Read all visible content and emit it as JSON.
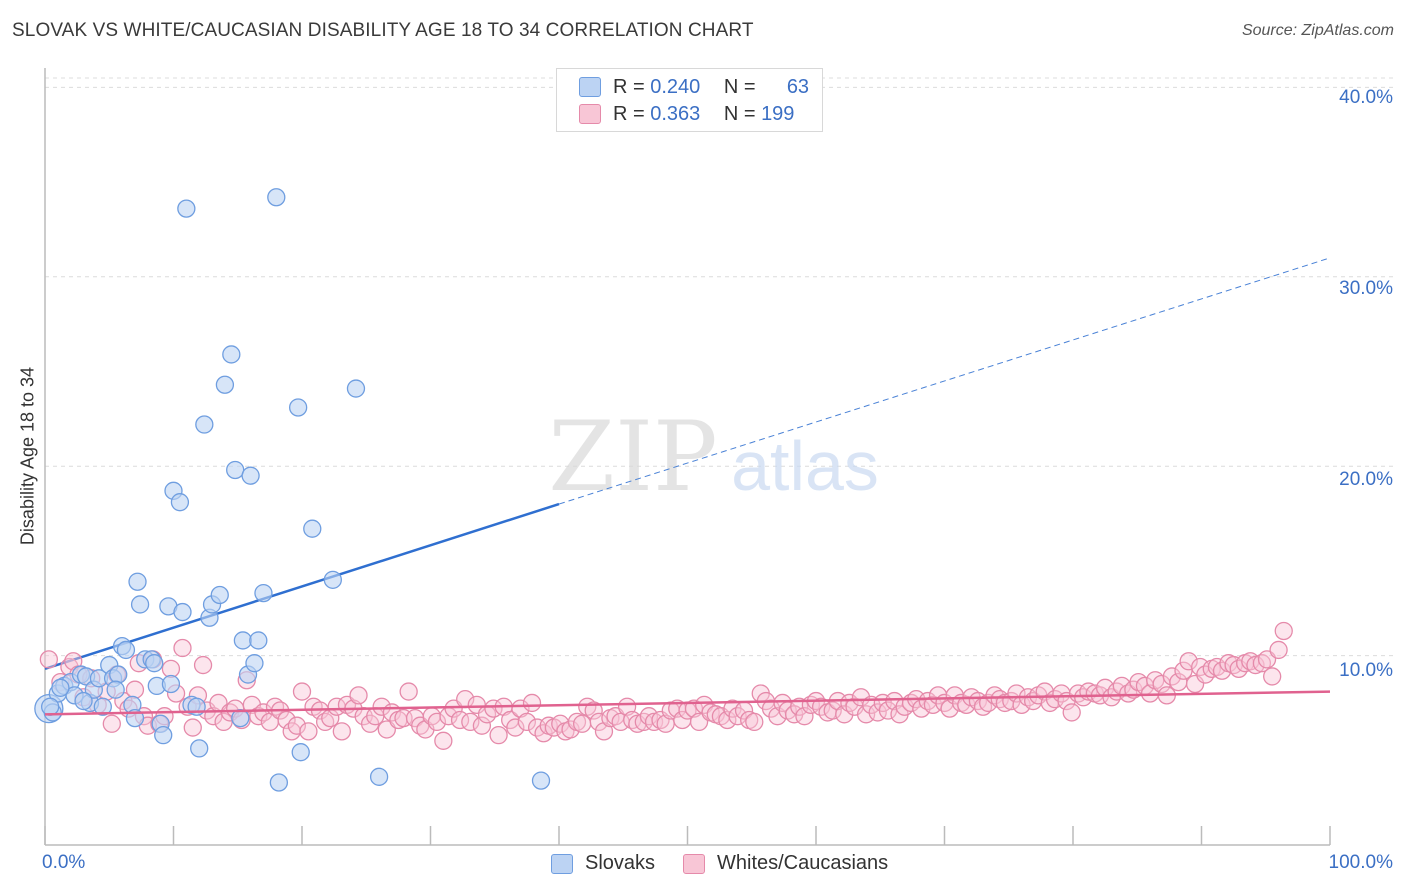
{
  "title": "SLOVAK VS WHITE/CAUCASIAN DISABILITY AGE 18 TO 34 CORRELATION CHART",
  "source": "Source: ZipAtlas.com",
  "watermark": {
    "zip": "ZIP",
    "atlas": "atlas"
  },
  "legend": {
    "rows": [
      {
        "r_label": "R =",
        "r_value": "0.240",
        "n_label": "N =",
        "n_value": "63",
        "color": "#6f9ee0",
        "fill": "#bcd3f3"
      },
      {
        "r_label": "R =",
        "r_value": "0.363",
        "n_label": "N =",
        "n_value": "199",
        "color": "#e58aaa",
        "fill": "#f8c6d6"
      }
    ]
  },
  "chart_data": {
    "type": "scatter",
    "title": "SLOVAK VS WHITE/CAUCASIAN DISABILITY AGE 18 TO 34 CORRELATION CHART",
    "xlabel": "",
    "ylabel": "Disability Age 18 to 34",
    "xlim": [
      0,
      100
    ],
    "ylim": [
      0,
      42
    ],
    "x_tick_labels": [
      "0.0%",
      "100.0%"
    ],
    "y_ticks": [
      10,
      20,
      30,
      40
    ],
    "y_tick_labels": [
      "10.0%",
      "20.0%",
      "30.0%",
      "40.0%"
    ],
    "grid": "horizontal dashed",
    "legend_position": "top-center",
    "series": [
      {
        "name": "Slovaks",
        "color": "#6f9ee0",
        "fill": "#bcd3f3",
        "trend": {
          "x0": 0,
          "y0": 9.3,
          "x1": 40,
          "y1": 18.0,
          "dashed_to": [
            100,
            31.0
          ]
        },
        "points": [
          [
            0.3,
            7.2,
            2
          ],
          [
            0.6,
            7.0,
            1
          ],
          [
            1.0,
            8.0,
            1
          ],
          [
            1.5,
            8.4,
            1
          ],
          [
            2.0,
            8.6,
            1
          ],
          [
            2.3,
            7.9,
            1
          ],
          [
            2.8,
            9.0,
            1
          ],
          [
            3.2,
            8.9,
            1
          ],
          [
            3.5,
            7.5,
            1
          ],
          [
            3.8,
            8.2,
            1
          ],
          [
            4.2,
            8.8,
            1
          ],
          [
            4.5,
            7.3,
            1
          ],
          [
            5.0,
            9.5,
            1
          ],
          [
            5.3,
            8.8,
            1
          ],
          [
            5.7,
            9.0,
            1
          ],
          [
            6.0,
            10.5,
            1
          ],
          [
            6.3,
            10.3,
            1
          ],
          [
            6.8,
            7.4,
            1
          ],
          [
            7.0,
            6.7,
            1
          ],
          [
            7.2,
            13.9,
            1
          ],
          [
            7.4,
            12.7,
            1
          ],
          [
            7.8,
            9.8,
            1
          ],
          [
            8.3,
            9.8,
            1
          ],
          [
            8.5,
            9.6,
            1
          ],
          [
            8.7,
            8.4,
            1
          ],
          [
            9.0,
            6.4,
            1
          ],
          [
            9.2,
            5.8,
            1
          ],
          [
            9.6,
            12.6,
            1
          ],
          [
            9.8,
            8.5,
            1
          ],
          [
            10.0,
            18.7,
            1
          ],
          [
            10.5,
            18.1,
            1
          ],
          [
            10.7,
            12.3,
            1
          ],
          [
            11.0,
            33.6,
            1
          ],
          [
            11.4,
            7.4,
            1
          ],
          [
            11.8,
            7.3,
            1
          ],
          [
            12.0,
            5.1,
            1
          ],
          [
            12.4,
            22.2,
            1
          ],
          [
            12.8,
            12.0,
            1
          ],
          [
            13.0,
            12.7,
            1
          ],
          [
            13.6,
            13.2,
            1
          ],
          [
            14.0,
            24.3,
            1
          ],
          [
            14.5,
            25.9,
            1
          ],
          [
            14.8,
            19.8,
            1
          ],
          [
            15.2,
            6.7,
            1
          ],
          [
            15.4,
            10.8,
            1
          ],
          [
            15.8,
            9.0,
            1
          ],
          [
            16.0,
            19.5,
            1
          ],
          [
            16.3,
            9.6,
            1
          ],
          [
            16.6,
            10.8,
            1
          ],
          [
            17.0,
            13.3,
            1
          ],
          [
            18.0,
            34.2,
            1
          ],
          [
            18.2,
            3.3,
            1
          ],
          [
            19.7,
            23.1,
            1
          ],
          [
            19.9,
            4.9,
            1
          ],
          [
            20.8,
            16.7,
            1
          ],
          [
            22.4,
            14.0,
            1
          ],
          [
            24.2,
            24.1,
            1
          ],
          [
            26.0,
            3.6,
            1
          ],
          [
            38.6,
            3.4,
            1
          ],
          [
            0.4,
            7.3,
            1
          ],
          [
            1.2,
            8.3,
            1
          ],
          [
            3.0,
            7.6,
            1
          ],
          [
            5.5,
            8.2,
            1
          ]
        ]
      },
      {
        "name": "Whites/Caucasians",
        "color": "#e58aaa",
        "fill": "#f8c6d6",
        "trend": {
          "x0": 0,
          "y0": 6.9,
          "x1": 100,
          "y1": 8.1
        },
        "points": [
          [
            0.3,
            9.8
          ],
          [
            1.2,
            8.6
          ],
          [
            1.9,
            9.4
          ],
          [
            2.2,
            9.7
          ],
          [
            2.6,
            9.0
          ],
          [
            3.0,
            7.8
          ],
          [
            3.6,
            8.8
          ],
          [
            4.1,
            7.4
          ],
          [
            4.8,
            8.1
          ],
          [
            5.2,
            6.4
          ],
          [
            5.6,
            9.0
          ],
          [
            6.1,
            7.6
          ],
          [
            6.5,
            7.2
          ],
          [
            7.0,
            8.2
          ],
          [
            7.3,
            9.6
          ],
          [
            7.7,
            6.8
          ],
          [
            8.0,
            6.3
          ],
          [
            8.4,
            9.8
          ],
          [
            8.9,
            6.4
          ],
          [
            9.3,
            6.8
          ],
          [
            9.8,
            9.3
          ],
          [
            10.2,
            8.0
          ],
          [
            10.7,
            10.4
          ],
          [
            11.1,
            7.3
          ],
          [
            11.5,
            6.2
          ],
          [
            11.9,
            7.9
          ],
          [
            12.3,
            9.5
          ],
          [
            12.6,
            7.1
          ],
          [
            13.1,
            6.8
          ],
          [
            13.5,
            7.5
          ],
          [
            13.9,
            6.5
          ],
          [
            14.4,
            7.0
          ],
          [
            14.8,
            7.2
          ],
          [
            15.3,
            6.6
          ],
          [
            15.7,
            8.7
          ],
          [
            16.1,
            7.4
          ],
          [
            16.6,
            6.8
          ],
          [
            17.0,
            7.0
          ],
          [
            17.5,
            6.5
          ],
          [
            17.9,
            7.3
          ],
          [
            18.3,
            7.1
          ],
          [
            18.8,
            6.6
          ],
          [
            19.2,
            6.0
          ],
          [
            19.6,
            6.3
          ],
          [
            20.0,
            8.1
          ],
          [
            20.5,
            6.0
          ],
          [
            20.9,
            7.3
          ],
          [
            21.4,
            7.1
          ],
          [
            21.8,
            6.5
          ],
          [
            22.2,
            6.7
          ],
          [
            22.7,
            7.3
          ],
          [
            23.1,
            6.0
          ],
          [
            23.5,
            7.4
          ],
          [
            24.0,
            7.2
          ],
          [
            24.4,
            7.9
          ],
          [
            24.8,
            6.8
          ],
          [
            25.3,
            6.4
          ],
          [
            25.7,
            6.8
          ],
          [
            26.2,
            7.3
          ],
          [
            26.6,
            6.1
          ],
          [
            27.0,
            7.0
          ],
          [
            27.5,
            6.6
          ],
          [
            27.9,
            6.7
          ],
          [
            28.3,
            8.1
          ],
          [
            28.8,
            6.7
          ],
          [
            29.2,
            6.3
          ],
          [
            29.6,
            6.1
          ],
          [
            30.1,
            6.8
          ],
          [
            30.5,
            6.5
          ],
          [
            31.0,
            5.5
          ],
          [
            31.4,
            6.8
          ],
          [
            31.8,
            7.2
          ],
          [
            32.3,
            6.6
          ],
          [
            32.7,
            7.7
          ],
          [
            33.1,
            6.5
          ],
          [
            33.6,
            7.4
          ],
          [
            34.0,
            6.3
          ],
          [
            34.4,
            6.9
          ],
          [
            34.9,
            7.2
          ],
          [
            35.3,
            5.8
          ],
          [
            35.7,
            7.3
          ],
          [
            36.2,
            6.6
          ],
          [
            36.6,
            6.2
          ],
          [
            37.0,
            7.2
          ],
          [
            37.5,
            6.5
          ],
          [
            37.9,
            7.5
          ],
          [
            38.3,
            6.2
          ],
          [
            38.8,
            5.9
          ],
          [
            39.2,
            6.3
          ],
          [
            39.6,
            6.2
          ],
          [
            40.1,
            6.4
          ],
          [
            40.5,
            6.0
          ],
          [
            40.9,
            6.1
          ],
          [
            41.4,
            6.5
          ],
          [
            41.8,
            6.4
          ],
          [
            42.2,
            7.3
          ],
          [
            42.7,
            7.1
          ],
          [
            43.1,
            6.5
          ],
          [
            43.5,
            6.0
          ],
          [
            44.0,
            6.7
          ],
          [
            44.4,
            6.8
          ],
          [
            44.8,
            6.5
          ],
          [
            45.3,
            7.3
          ],
          [
            45.7,
            6.6
          ],
          [
            46.1,
            6.4
          ],
          [
            46.6,
            6.5
          ],
          [
            47.0,
            6.8
          ],
          [
            47.4,
            6.5
          ],
          [
            47.9,
            6.6
          ],
          [
            48.3,
            6.4
          ],
          [
            48.7,
            7.1
          ],
          [
            49.2,
            7.2
          ],
          [
            49.6,
            6.6
          ],
          [
            50.0,
            7.1
          ],
          [
            50.5,
            7.2
          ],
          [
            50.9,
            6.5
          ],
          [
            51.3,
            7.4
          ],
          [
            51.8,
            7.0
          ],
          [
            52.2,
            6.9
          ],
          [
            52.6,
            6.8
          ],
          [
            53.1,
            6.6
          ],
          [
            53.5,
            7.2
          ],
          [
            53.9,
            6.8
          ],
          [
            54.4,
            7.1
          ],
          [
            54.8,
            6.6
          ],
          [
            55.2,
            6.5
          ],
          [
            55.7,
            8.0
          ],
          [
            56.1,
            7.6
          ],
          [
            56.5,
            7.2
          ],
          [
            57.0,
            6.8
          ],
          [
            57.4,
            7.5
          ],
          [
            57.8,
            7.1
          ],
          [
            58.3,
            6.9
          ],
          [
            58.7,
            7.3
          ],
          [
            59.1,
            6.8
          ],
          [
            59.6,
            7.4
          ],
          [
            60.0,
            7.6
          ],
          [
            60.4,
            7.3
          ],
          [
            60.9,
            7.0
          ],
          [
            61.3,
            7.1
          ],
          [
            61.7,
            7.6
          ],
          [
            62.2,
            6.9
          ],
          [
            62.6,
            7.5
          ],
          [
            63.0,
            7.3
          ],
          [
            63.5,
            7.8
          ],
          [
            63.9,
            6.9
          ],
          [
            64.3,
            7.4
          ],
          [
            64.8,
            7.0
          ],
          [
            65.2,
            7.5
          ],
          [
            65.6,
            7.1
          ],
          [
            66.1,
            7.6
          ],
          [
            66.5,
            6.9
          ],
          [
            66.9,
            7.3
          ],
          [
            67.4,
            7.5
          ],
          [
            67.8,
            7.7
          ],
          [
            68.2,
            7.2
          ],
          [
            68.7,
            7.6
          ],
          [
            69.1,
            7.4
          ],
          [
            69.5,
            7.9
          ],
          [
            70.0,
            7.5
          ],
          [
            70.4,
            7.2
          ],
          [
            70.8,
            7.9
          ],
          [
            71.3,
            7.5
          ],
          [
            71.7,
            7.4
          ],
          [
            72.1,
            7.8
          ],
          [
            72.6,
            7.6
          ],
          [
            73.0,
            7.3
          ],
          [
            73.4,
            7.5
          ],
          [
            73.9,
            7.9
          ],
          [
            74.3,
            7.7
          ],
          [
            74.7,
            7.5
          ],
          [
            75.2,
            7.6
          ],
          [
            75.6,
            8.0
          ],
          [
            76.0,
            7.4
          ],
          [
            76.5,
            7.8
          ],
          [
            76.9,
            7.6
          ],
          [
            77.3,
            7.9
          ],
          [
            77.8,
            8.1
          ],
          [
            78.2,
            7.5
          ],
          [
            78.6,
            7.7
          ],
          [
            79.1,
            8.0
          ],
          [
            79.5,
            7.6
          ],
          [
            79.9,
            7.0
          ],
          [
            80.4,
            8.0
          ],
          [
            80.8,
            7.8
          ],
          [
            81.2,
            8.1
          ],
          [
            81.7,
            8.0
          ],
          [
            82.1,
            7.9
          ],
          [
            82.5,
            8.3
          ],
          [
            83.0,
            7.8
          ],
          [
            83.4,
            8.1
          ],
          [
            83.8,
            8.4
          ],
          [
            84.3,
            8.0
          ],
          [
            84.7,
            8.2
          ],
          [
            85.1,
            8.6
          ],
          [
            85.6,
            8.4
          ],
          [
            86.0,
            8.0
          ],
          [
            86.4,
            8.7
          ],
          [
            86.9,
            8.5
          ],
          [
            87.3,
            7.9
          ],
          [
            87.7,
            8.9
          ],
          [
            88.2,
            8.6
          ],
          [
            88.6,
            9.2
          ],
          [
            89.0,
            9.7
          ],
          [
            89.5,
            8.5
          ],
          [
            89.9,
            9.4
          ],
          [
            90.3,
            9.0
          ],
          [
            90.8,
            9.3
          ],
          [
            91.2,
            9.4
          ],
          [
            91.6,
            9.2
          ],
          [
            92.1,
            9.6
          ],
          [
            92.5,
            9.5
          ],
          [
            92.9,
            9.3
          ],
          [
            93.4,
            9.6
          ],
          [
            93.8,
            9.7
          ],
          [
            94.2,
            9.5
          ],
          [
            94.7,
            9.6
          ],
          [
            95.1,
            9.8
          ],
          [
            95.5,
            8.9
          ],
          [
            96.0,
            10.3
          ],
          [
            96.4,
            11.3
          ]
        ]
      }
    ]
  },
  "bottom_legend": [
    {
      "label": "Slovaks",
      "color": "#6f9ee0",
      "fill": "#bcd3f3"
    },
    {
      "label": "Whites/Caucasians",
      "color": "#e58aaa",
      "fill": "#f8c6d6"
    }
  ]
}
